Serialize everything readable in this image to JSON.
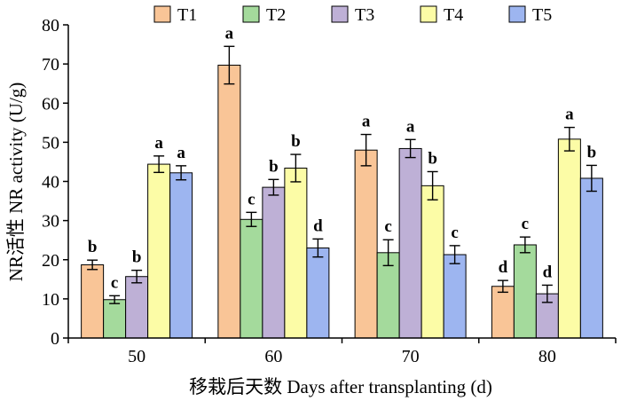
{
  "chart_data": {
    "type": "bar",
    "title": "",
    "xlabel": "移栽后天数 Days after transplanting (d)",
    "ylabel": "NR活性 NR activity (U/g)",
    "categories": [
      "50",
      "60",
      "70",
      "80"
    ],
    "ylim": [
      0,
      80
    ],
    "yticks": [
      0,
      10,
      20,
      30,
      40,
      50,
      60,
      70,
      80
    ],
    "grid": false,
    "legend_position": "top",
    "series": [
      {
        "name": "T1",
        "color": "#F9C597",
        "values": [
          18.7,
          69.7,
          48.0,
          13.2
        ],
        "errors": [
          1.2,
          4.8,
          4.0,
          1.5
        ],
        "labels": [
          "b",
          "a",
          "a",
          "d"
        ]
      },
      {
        "name": "T2",
        "color": "#A4DA9C",
        "values": [
          9.8,
          30.3,
          21.8,
          23.8
        ],
        "errors": [
          1.0,
          1.8,
          3.3,
          2.0
        ],
        "labels": [
          "c",
          "c",
          "c",
          "c"
        ]
      },
      {
        "name": "T3",
        "color": "#BEB0D6",
        "values": [
          15.7,
          38.5,
          48.4,
          11.3
        ],
        "errors": [
          1.6,
          2.0,
          2.3,
          2.2
        ],
        "labels": [
          "b",
          "b",
          "a",
          "d"
        ]
      },
      {
        "name": "T4",
        "color": "#FCFCA6",
        "values": [
          44.4,
          43.4,
          38.9,
          50.8
        ],
        "errors": [
          2.1,
          3.5,
          3.6,
          3.0
        ],
        "labels": [
          "a",
          "b",
          "b",
          "a"
        ]
      },
      {
        "name": "T5",
        "color": "#9DB5F0",
        "values": [
          42.2,
          23.0,
          21.3,
          40.8
        ],
        "errors": [
          1.8,
          2.3,
          2.3,
          3.3
        ],
        "labels": [
          "a",
          "d",
          "c",
          "b"
        ]
      }
    ]
  }
}
